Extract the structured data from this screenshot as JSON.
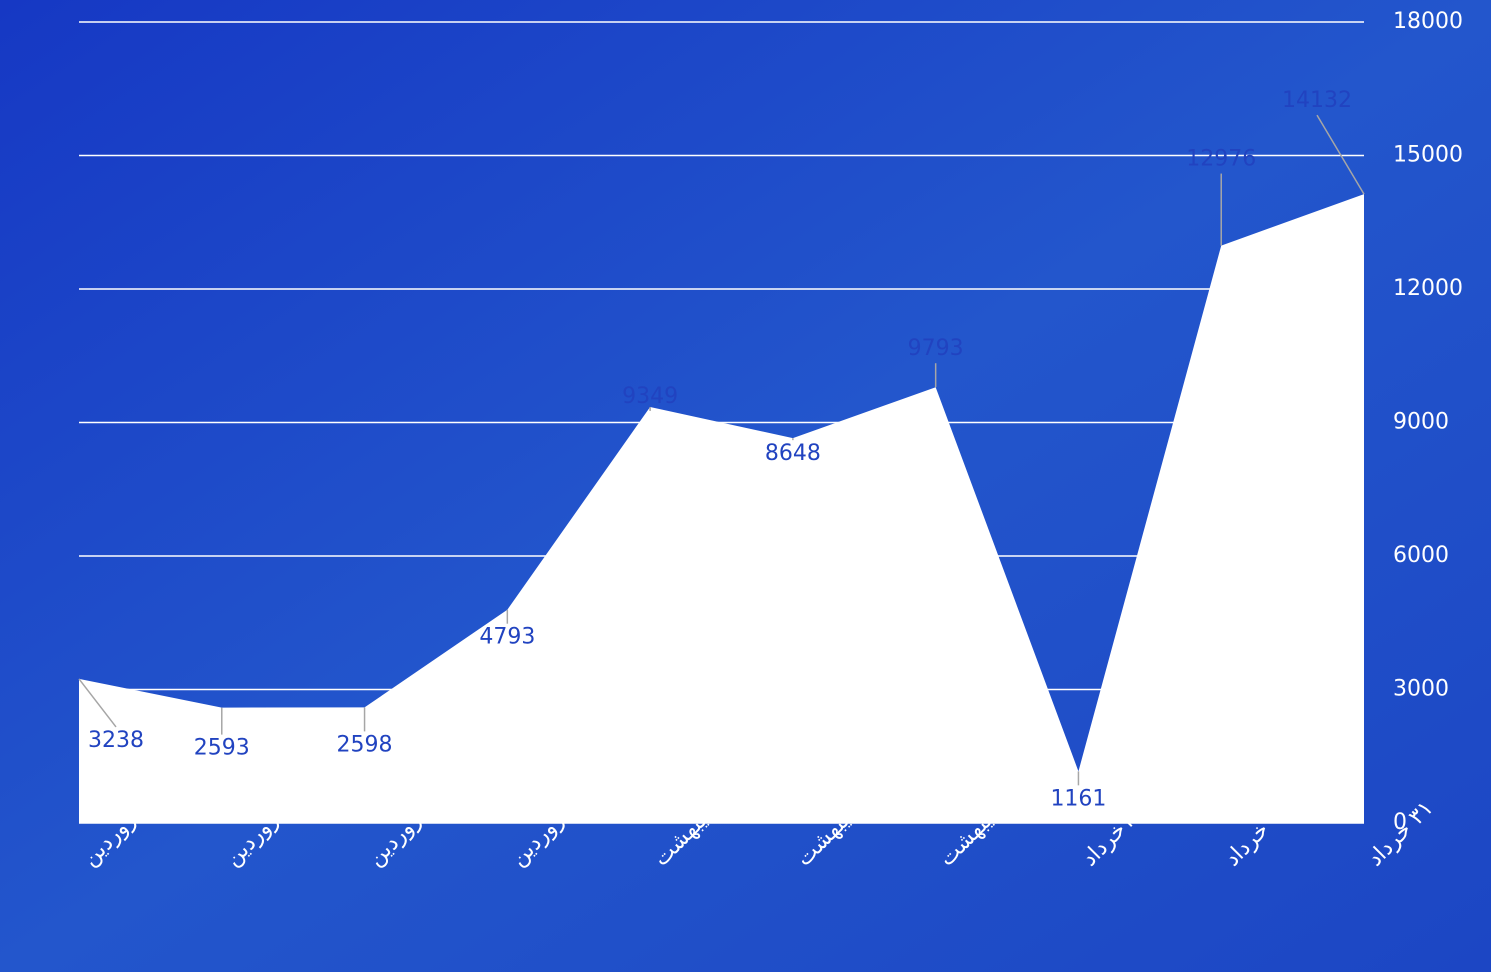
{
  "chart_data": {
    "type": "area",
    "categories": [
      "۱فروردین",
      "۱۰فروردین",
      "۲۰ فروردین",
      "۳۰ فروردین",
      "۱۰ اردیبهشت",
      "۲۰ اردیبهشت",
      "۳۱ اردیبهشت",
      "۱۰خرداد",
      "۲۰ خرداد",
      "۳۱ خرداد"
    ],
    "values": [
      3238,
      2593,
      2598,
      4793,
      9349,
      8648,
      9793,
      1161,
      12976,
      14132
    ],
    "color": "#ffffff",
    "ylim": [
      0,
      18000
    ],
    "yticks": [
      0,
      3000,
      6000,
      9000,
      12000,
      15000,
      18000
    ],
    "grid": true
  }
}
